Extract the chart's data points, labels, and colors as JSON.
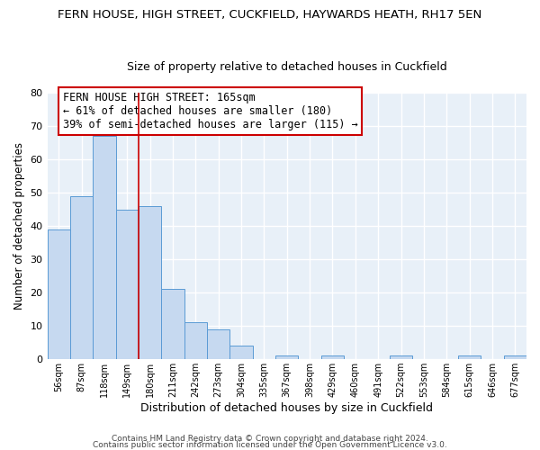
{
  "title1": "FERN HOUSE, HIGH STREET, CUCKFIELD, HAYWARDS HEATH, RH17 5EN",
  "title2": "Size of property relative to detached houses in Cuckfield",
  "xlabel": "Distribution of detached houses by size in Cuckfield",
  "ylabel": "Number of detached properties",
  "bin_labels": [
    "56sqm",
    "87sqm",
    "118sqm",
    "149sqm",
    "180sqm",
    "211sqm",
    "242sqm",
    "273sqm",
    "304sqm",
    "335sqm",
    "367sqm",
    "398sqm",
    "429sqm",
    "460sqm",
    "491sqm",
    "522sqm",
    "553sqm",
    "584sqm",
    "615sqm",
    "646sqm",
    "677sqm"
  ],
  "bar_heights": [
    39,
    49,
    67,
    45,
    46,
    21,
    11,
    9,
    4,
    0,
    1,
    0,
    1,
    0,
    0,
    1,
    0,
    0,
    1,
    0,
    1
  ],
  "bar_color": "#c6d9f0",
  "bar_edge_color": "#5b9bd5",
  "annotation_title": "FERN HOUSE HIGH STREET: 165sqm",
  "annotation_line1": "← 61% of detached houses are smaller (180)",
  "annotation_line2": "39% of semi-detached houses are larger (115) →",
  "annotation_box_color": "#ffffff",
  "annotation_box_edge": "#cc0000",
  "footer1": "Contains HM Land Registry data © Crown copyright and database right 2024.",
  "footer2": "Contains public sector information licensed under the Open Government Licence v3.0.",
  "ylim": [
    0,
    80
  ],
  "yticks": [
    0,
    10,
    20,
    30,
    40,
    50,
    60,
    70,
    80
  ],
  "background_color": "#e8f0f8",
  "grid_color": "#ffffff",
  "title1_fontsize": 9.5,
  "title2_fontsize": 9.0,
  "ann_fontsize": 8.5,
  "footer_fontsize": 6.5
}
